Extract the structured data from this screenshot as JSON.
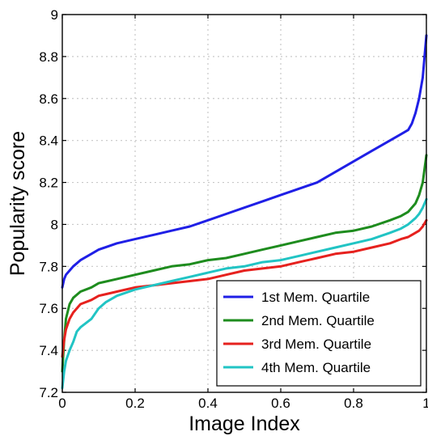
{
  "chart_data": {
    "type": "line",
    "title": "",
    "xlabel": "Image Index",
    "ylabel": "Popularity score",
    "xlim": [
      0,
      1
    ],
    "ylim": [
      7.2,
      9
    ],
    "xticks": [
      0,
      0.2,
      0.4,
      0.6,
      0.8,
      1
    ],
    "yticks": [
      7.2,
      7.4,
      7.6,
      7.8,
      8,
      8.2,
      8.4,
      8.6,
      8.8,
      9
    ],
    "xtick_labels": [
      "0",
      "0.2",
      "0.4",
      "0.6",
      "0.8",
      "1"
    ],
    "ytick_labels": [
      "7.2",
      "7.4",
      "7.6",
      "7.8",
      "8",
      "8.2",
      "8.4",
      "8.6",
      "8.8",
      "9"
    ],
    "grid": true,
    "legend_position": "bottom-right",
    "series": [
      {
        "name": "1st Mem. Quartile",
        "color": "#1f1fe6",
        "x": [
          0,
          0.005,
          0.01,
          0.02,
          0.03,
          0.05,
          0.08,
          0.1,
          0.15,
          0.2,
          0.25,
          0.3,
          0.35,
          0.4,
          0.45,
          0.5,
          0.55,
          0.6,
          0.65,
          0.7,
          0.75,
          0.8,
          0.85,
          0.9,
          0.93,
          0.95,
          0.96,
          0.97,
          0.98,
          0.99,
          1.0
        ],
        "y": [
          7.7,
          7.74,
          7.76,
          7.78,
          7.8,
          7.83,
          7.86,
          7.88,
          7.91,
          7.93,
          7.95,
          7.97,
          7.99,
          8.02,
          8.05,
          8.08,
          8.11,
          8.14,
          8.17,
          8.2,
          8.25,
          8.3,
          8.35,
          8.4,
          8.43,
          8.45,
          8.48,
          8.53,
          8.6,
          8.7,
          8.9
        ]
      },
      {
        "name": "2nd Mem. Quartile",
        "color": "#1e8c1e",
        "x": [
          0,
          0.005,
          0.01,
          0.02,
          0.03,
          0.05,
          0.08,
          0.1,
          0.15,
          0.2,
          0.25,
          0.3,
          0.35,
          0.4,
          0.45,
          0.5,
          0.55,
          0.6,
          0.65,
          0.7,
          0.75,
          0.8,
          0.85,
          0.9,
          0.93,
          0.95,
          0.97,
          0.98,
          0.99,
          1.0
        ],
        "y": [
          7.3,
          7.45,
          7.55,
          7.62,
          7.65,
          7.68,
          7.7,
          7.72,
          7.74,
          7.76,
          7.78,
          7.8,
          7.81,
          7.83,
          7.84,
          7.86,
          7.88,
          7.9,
          7.92,
          7.94,
          7.96,
          7.97,
          7.99,
          8.02,
          8.04,
          8.06,
          8.1,
          8.14,
          8.2,
          8.33
        ]
      },
      {
        "name": "3rd Mem. Quartile",
        "color": "#e6211e",
        "x": [
          0,
          0.005,
          0.01,
          0.02,
          0.03,
          0.05,
          0.08,
          0.1,
          0.15,
          0.2,
          0.25,
          0.3,
          0.35,
          0.4,
          0.45,
          0.5,
          0.55,
          0.6,
          0.65,
          0.7,
          0.75,
          0.8,
          0.85,
          0.9,
          0.93,
          0.95,
          0.97,
          0.98,
          0.99,
          1.0
        ],
        "y": [
          7.37,
          7.45,
          7.5,
          7.55,
          7.58,
          7.62,
          7.64,
          7.66,
          7.68,
          7.7,
          7.71,
          7.72,
          7.73,
          7.74,
          7.76,
          7.78,
          7.79,
          7.8,
          7.82,
          7.84,
          7.86,
          7.87,
          7.89,
          7.91,
          7.93,
          7.94,
          7.96,
          7.97,
          7.99,
          8.02
        ]
      },
      {
        "name": "4th Mem. Quartile",
        "color": "#21c4c4",
        "x": [
          0,
          0.005,
          0.01,
          0.02,
          0.03,
          0.04,
          0.05,
          0.08,
          0.1,
          0.12,
          0.15,
          0.2,
          0.25,
          0.3,
          0.35,
          0.4,
          0.45,
          0.5,
          0.55,
          0.6,
          0.65,
          0.7,
          0.75,
          0.8,
          0.85,
          0.9,
          0.93,
          0.95,
          0.97,
          0.98,
          0.99,
          1.0
        ],
        "y": [
          7.22,
          7.3,
          7.35,
          7.4,
          7.44,
          7.49,
          7.51,
          7.55,
          7.6,
          7.63,
          7.66,
          7.69,
          7.71,
          7.73,
          7.75,
          7.77,
          7.79,
          7.8,
          7.82,
          7.83,
          7.85,
          7.87,
          7.89,
          7.91,
          7.93,
          7.96,
          7.98,
          8.0,
          8.03,
          8.05,
          8.08,
          8.12
        ]
      }
    ]
  }
}
